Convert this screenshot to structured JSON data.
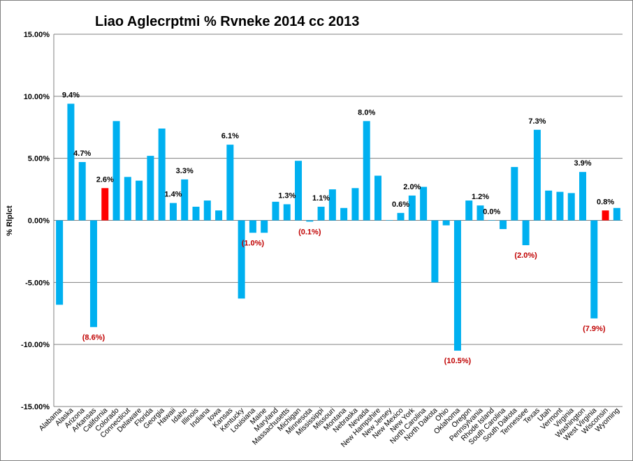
{
  "chart_data": {
    "type": "bar",
    "title": "Liao Aglecrptmi % Rvneke 2014 cc 2013",
    "ylabel": "% Rlplct",
    "xlabel": "",
    "ylim": [
      -15,
      15
    ],
    "yticks": [
      15,
      10,
      5,
      0,
      -5,
      -10,
      -15
    ],
    "ytick_labels": [
      "15.00%",
      "10.00%",
      "5.00%",
      "0.00%",
      "-5.00%",
      "-10.00%",
      "-15.00%"
    ],
    "grid": true,
    "legend": "none",
    "colors": {
      "default": "#00B0F0",
      "highlight": "#FF0000",
      "negative_label": "#C00000",
      "positive_label": "#000000",
      "grid": "#808080"
    },
    "categories": [
      "Alabama",
      "Alaska",
      "Arizona",
      "Arkansas",
      "California",
      "Colorado",
      "Connecticut",
      "Delaware",
      "Florida",
      "Georgia",
      "Hawaii",
      "Idaho",
      "Illinois",
      "Indiana",
      "Iowa",
      "Kansas",
      "Kentucky",
      "Louisiana",
      "Maine",
      "Maryland",
      "Massachusetts",
      "Michigan",
      "Minnesota",
      "Mississippi",
      "Missouri",
      "Montana",
      "Nebraska",
      "Nevada",
      "New Hampshire",
      "New Jersey",
      "New Mexico",
      "New York",
      "North Carolina",
      "North Dakota",
      "Ohio",
      "Oklahoma",
      "Oregon",
      "Pennsylvania",
      "Rhode Island",
      "South Carolina",
      "South Dakota",
      "Tennessee",
      "Texas",
      "Utah",
      "Vermont",
      "Virginia",
      "Washington",
      "West Virginia",
      "Wisconsin",
      "Wyoming"
    ],
    "values": [
      -6.8,
      9.4,
      4.7,
      -8.6,
      2.6,
      8.0,
      3.5,
      3.2,
      5.2,
      7.4,
      1.4,
      3.3,
      1.1,
      1.6,
      0.8,
      6.1,
      -6.3,
      -1.0,
      -1.0,
      1.5,
      1.3,
      4.8,
      -0.1,
      1.1,
      2.5,
      1.0,
      2.6,
      8.0,
      3.6,
      0.0,
      0.6,
      2.0,
      2.7,
      -5.0,
      -0.4,
      -10.5,
      1.6,
      1.2,
      0.0,
      -0.7,
      4.3,
      -2.0,
      7.3,
      2.4,
      2.3,
      2.2,
      3.9,
      -7.9,
      0.8,
      1.0
    ],
    "highlighted": [
      "California",
      "Wisconsin"
    ],
    "data_labels": [
      {
        "category": "Alaska",
        "text": "9.4%"
      },
      {
        "category": "Arizona",
        "text": "4.7%"
      },
      {
        "category": "Arkansas",
        "text": "(8.6%)"
      },
      {
        "category": "California",
        "text": "2.6%"
      },
      {
        "category": "Hawaii",
        "text": "1.4%"
      },
      {
        "category": "Idaho",
        "text": "3.3%"
      },
      {
        "category": "Kansas",
        "text": "6.1%"
      },
      {
        "category": "Louisiana",
        "text": "(1.0%)"
      },
      {
        "category": "Massachusetts",
        "text": "1.3%"
      },
      {
        "category": "Minnesota",
        "text": "(0.1%)"
      },
      {
        "category": "Mississippi",
        "text": "1.1%"
      },
      {
        "category": "Nevada",
        "text": "8.0%"
      },
      {
        "category": "New Mexico",
        "text": "0.6%"
      },
      {
        "category": "New York",
        "text": "2.0%"
      },
      {
        "category": "Oklahoma",
        "text": "(10.5%)"
      },
      {
        "category": "Pennsylvania",
        "text": "1.2%"
      },
      {
        "category": "Rhode Island",
        "text": "0.0%"
      },
      {
        "category": "Tennessee",
        "text": "(2.0%)"
      },
      {
        "category": "Texas",
        "text": "7.3%"
      },
      {
        "category": "Washington",
        "text": "3.9%"
      },
      {
        "category": "West Virginia",
        "text": "(7.9%)"
      },
      {
        "category": "Wisconsin",
        "text": "0.8%"
      }
    ]
  }
}
